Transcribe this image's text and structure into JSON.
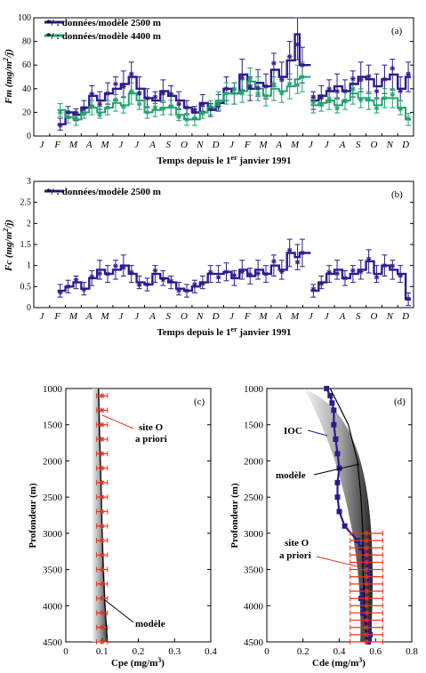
{
  "colors": {
    "series_2500": "#2e1a8c",
    "series_4400": "#1fa36b",
    "red": "#e8321e",
    "black": "#000000"
  },
  "chart_data": [
    {
      "panel": "(a)",
      "type": "line",
      "ylabel": "Fm (mg/m²/j)",
      "xlabel": "Temps depuis le 1er janvier 1991",
      "xlabel_parts": {
        "pre": "Temps depuis le 1",
        "sup": "er",
        "post": " janvier 1991"
      },
      "ylabel_parts": {
        "pre": "Fm (mg/m",
        "sup": "2",
        "post": "/j)"
      },
      "month_labels": [
        "J",
        "F",
        "M",
        "A",
        "M",
        "J",
        "J",
        "A",
        "S",
        "O",
        "N",
        "D",
        "J",
        "F",
        "M",
        "A",
        "M",
        "J",
        "J",
        "A",
        "S",
        "O",
        "N",
        "D"
      ],
      "ylim": [
        0,
        100
      ],
      "yticks": [
        0,
        20,
        40,
        60,
        80,
        100
      ],
      "xlim": [
        0,
        24
      ],
      "legend": [
        "*/ : données/modèle 2500 m",
        "*/ : données/modèle 4400 m"
      ],
      "series": [
        {
          "name": "données/modèle 2500 m",
          "x": [
            1.5,
            2,
            2.5,
            3,
            3.5,
            4,
            4.5,
            5,
            5.5,
            6,
            6.5,
            7,
            7.5,
            8,
            8.5,
            9,
            9.5,
            10,
            10.5,
            11,
            11.5,
            12,
            12.5,
            13,
            13.5,
            14,
            14.5,
            15,
            15.5,
            16,
            16.5,
            16.8,
            17.5,
            18,
            18.5,
            19,
            19.5,
            20,
            20.5,
            21,
            21.5,
            22,
            22.5,
            23,
            23.5
          ],
          "values": [
            10,
            20,
            18,
            24,
            34,
            30,
            36,
            40,
            44,
            50,
            40,
            32,
            30,
            38,
            34,
            30,
            24,
            20,
            28,
            22,
            28,
            40,
            36,
            52,
            40,
            45,
            42,
            56,
            50,
            64,
            86,
            60,
            30,
            34,
            38,
            42,
            38,
            44,
            50,
            48,
            42,
            48,
            52,
            40,
            50
          ]
        },
        {
          "name": "données/modèle 4400 m",
          "x": [
            1.5,
            2,
            2.5,
            3,
            3.5,
            4,
            4.5,
            5,
            5.5,
            6,
            6.5,
            7,
            7.5,
            8,
            8.5,
            9,
            9.5,
            10,
            10.5,
            11,
            11.5,
            12,
            12.5,
            13,
            13.5,
            14,
            14.5,
            15,
            15.5,
            16,
            16.5,
            16.8,
            17.5,
            18,
            18.5,
            19,
            19.5,
            20,
            20.5,
            21,
            21.5,
            22,
            22.5,
            23,
            23.5
          ],
          "values": [
            22,
            16,
            14,
            20,
            24,
            20,
            24,
            28,
            26,
            36,
            30,
            20,
            22,
            24,
            24,
            18,
            14,
            14,
            20,
            24,
            30,
            36,
            36,
            38,
            46,
            40,
            34,
            40,
            38,
            42,
            48,
            50,
            26,
            28,
            30,
            26,
            30,
            36,
            32,
            30,
            26,
            32,
            32,
            24,
            14
          ]
        }
      ]
    },
    {
      "panel": "(b)",
      "type": "line",
      "ylabel": "Fc (mg/m²/j)",
      "xlabel": "Temps depuis le 1er janvier 1991",
      "xlabel_parts": {
        "pre": "Temps depuis le 1",
        "sup": "er",
        "post": " janvier 1991"
      },
      "ylabel_parts": {
        "pre": "Fc (mg/m",
        "sup": "2",
        "post": "/j)"
      },
      "month_labels": [
        "J",
        "F",
        "M",
        "A",
        "M",
        "J",
        "J",
        "A",
        "S",
        "O",
        "N",
        "D",
        "J",
        "F",
        "M",
        "A",
        "M",
        "J",
        "J",
        "A",
        "S",
        "O",
        "N",
        "D"
      ],
      "ylim": [
        0,
        3
      ],
      "yticks": [
        0,
        0.5,
        1,
        1.5,
        2,
        2.5,
        3
      ],
      "ytick_labels": [
        "0",
        "0.5",
        "1",
        "1.5",
        "2",
        "2.5",
        "3"
      ],
      "xlim": [
        0,
        24
      ],
      "legend": [
        "*/ : données/modèle 2500 m"
      ],
      "series": [
        {
          "name": "données/modèle 2500 m",
          "x": [
            1.5,
            2,
            2.5,
            3,
            3.5,
            4,
            4.5,
            5,
            5.5,
            6,
            6.5,
            7,
            7.5,
            8,
            8.5,
            9,
            9.5,
            10,
            10.5,
            11,
            11.5,
            12,
            12.5,
            13,
            13.5,
            14,
            14.5,
            15,
            15.5,
            16,
            16.5,
            16.8,
            17.5,
            18,
            18.5,
            19,
            19.5,
            20,
            20.5,
            21,
            21.5,
            22,
            22.5,
            23,
            23.5
          ],
          "values": [
            0.4,
            0.5,
            0.6,
            0.45,
            0.7,
            0.9,
            0.8,
            0.9,
            1.0,
            0.8,
            0.6,
            0.55,
            0.8,
            0.7,
            0.6,
            0.45,
            0.4,
            0.5,
            0.6,
            0.8,
            0.8,
            0.85,
            0.7,
            0.9,
            0.75,
            0.9,
            0.8,
            1.0,
            0.9,
            1.3,
            1.2,
            1.3,
            0.4,
            0.6,
            0.8,
            0.9,
            0.7,
            0.8,
            0.9,
            1.1,
            0.8,
            1.0,
            0.9,
            0.8,
            0.2
          ]
        }
      ]
    },
    {
      "panel": "(c)",
      "type": "line",
      "ylabel": "Profondeur (m)",
      "xlabel": "Cpe (mg/m³)",
      "xlabel_parts": {
        "pre": "Cpe (mg/m",
        "sup": "3",
        "post": ")"
      },
      "xlim": [
        0,
        0.4
      ],
      "xticks": [
        0,
        0.1,
        0.2,
        0.3,
        0.4
      ],
      "xtick_labels": [
        "0",
        "0.1",
        "0.2",
        "0.3",
        "0.4"
      ],
      "ylim": [
        1000,
        4500
      ],
      "yticks": [
        1000,
        1500,
        2000,
        2500,
        3000,
        3500,
        4000,
        4500
      ],
      "annotations": [
        "site O a priori",
        "modèle"
      ],
      "series": [
        {
          "name": "modèle",
          "depth": [
            1000,
            1500,
            2000,
            2500,
            3000,
            3500,
            4000,
            4500
          ],
          "values": [
            0.09,
            0.092,
            0.095,
            0.098,
            0.1,
            0.103,
            0.108,
            0.115
          ]
        },
        {
          "name": "site O a priori",
          "depth": [
            1100,
            1300,
            1500,
            1700,
            1900,
            2100,
            2300,
            2500,
            2700,
            2900,
            3100,
            3300,
            3500,
            3700,
            3900,
            4100,
            4300,
            4500
          ],
          "values": [
            0.1,
            0.1,
            0.1,
            0.1,
            0.1,
            0.1,
            0.1,
            0.1,
            0.1,
            0.1,
            0.1,
            0.1,
            0.1,
            0.1,
            0.1,
            0.1,
            0.1,
            0.1
          ],
          "error": 0.015
        }
      ]
    },
    {
      "panel": "(d)",
      "type": "line",
      "ylabel": "Profondeur (m)",
      "xlabel": "Cde (mg/m³)",
      "xlabel_parts": {
        "pre": "Cde (mg/m",
        "sup": "3",
        "post": ")"
      },
      "xlim": [
        0,
        0.8
      ],
      "xticks": [
        0,
        0.2,
        0.4,
        0.6,
        0.8
      ],
      "xtick_labels": [
        "0",
        "0.2",
        "0.4",
        "0.6",
        "0.8"
      ],
      "ylim": [
        1000,
        4500
      ],
      "yticks": [
        1000,
        1500,
        2000,
        2500,
        3000,
        3500,
        4000,
        4500
      ],
      "annotations": [
        "IOC",
        "modèle",
        "site O a priori"
      ],
      "series": [
        {
          "name": "IOC",
          "depth": [
            1000,
            1100,
            1200,
            1300,
            1500,
            1700,
            1900,
            2100,
            2300,
            2500,
            2700,
            2900,
            3100,
            3200,
            3300,
            3400,
            3500,
            3600,
            3700,
            3800,
            3900,
            4000,
            4100,
            4200,
            4300,
            4400,
            4500
          ],
          "values": [
            0.33,
            0.35,
            0.36,
            0.37,
            0.37,
            0.38,
            0.39,
            0.4,
            0.39,
            0.39,
            0.4,
            0.43,
            0.5,
            0.52,
            0.54,
            0.55,
            0.56,
            0.57,
            0.55,
            0.53,
            0.52,
            0.53,
            0.53,
            0.55,
            0.56,
            0.57,
            0.56
          ]
        },
        {
          "name": "modèle",
          "depth": [
            1000,
            1500,
            2000,
            2500,
            3000,
            3500,
            4000,
            4500
          ],
          "values": [
            0.35,
            0.45,
            0.5,
            0.52,
            0.53,
            0.53,
            0.54,
            0.55
          ]
        },
        {
          "name": "site O a priori",
          "depth": [
            3000,
            3100,
            3200,
            3300,
            3400,
            3500,
            3600,
            3700,
            3800,
            3900,
            4000,
            4100,
            4200,
            4300,
            4400,
            4500
          ],
          "values": [
            0.55,
            0.55,
            0.55,
            0.55,
            0.55,
            0.55,
            0.55,
            0.55,
            0.55,
            0.55,
            0.55,
            0.55,
            0.55,
            0.55,
            0.55,
            0.55
          ],
          "error": 0.09
        }
      ]
    }
  ]
}
